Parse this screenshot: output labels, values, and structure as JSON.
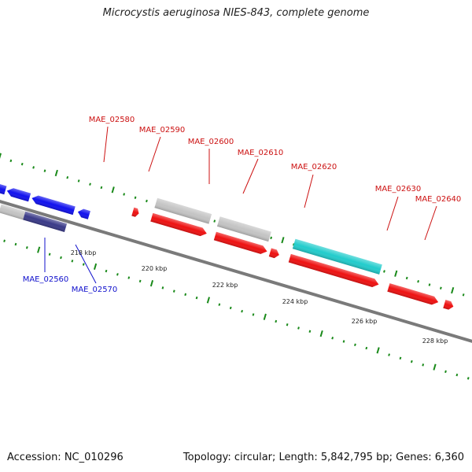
{
  "title": "Microcystis aeruginosa NIES-843, complete genome",
  "footer": {
    "accession": "Accession: NC_010296",
    "topology": "Topology: circular; Length: 5,842,795 bp; Genes: 6,360"
  },
  "colors": {
    "tick": "#1a8a1a",
    "backbone": "#808080",
    "red": "#ee1111",
    "gray": "#c4c4c4",
    "blue": "#1111ee",
    "navy": "#3a3a88",
    "cyan": "#22cccc",
    "green": "#33cc33",
    "label_red": "#cc1111",
    "label_blue": "#1111cc"
  },
  "scale": {
    "unit": "kbp",
    "labels": [
      "218 kbp",
      "220 kbp",
      "222 kbp",
      "224 kbp",
      "226 kbp",
      "228 kbp"
    ]
  },
  "genes": [
    {
      "name": "MAE_02560",
      "strand": "reverse",
      "color": "blue"
    },
    {
      "name": "MAE_02570",
      "strand": "reverse",
      "color": "blue"
    },
    {
      "name": "MAE_02580",
      "strand": "forward",
      "color": "red"
    },
    {
      "name": "MAE_02590",
      "strand": "forward",
      "color": "red"
    },
    {
      "name": "MAE_02600",
      "strand": "forward",
      "color": "red"
    },
    {
      "name": "MAE_02610",
      "strand": "forward",
      "color": "red"
    },
    {
      "name": "MAE_02620",
      "strand": "forward",
      "color": "red"
    },
    {
      "name": "MAE_02630",
      "strand": "forward",
      "color": "red"
    },
    {
      "name": "MAE_02640",
      "strand": "forward",
      "color": "red"
    }
  ]
}
